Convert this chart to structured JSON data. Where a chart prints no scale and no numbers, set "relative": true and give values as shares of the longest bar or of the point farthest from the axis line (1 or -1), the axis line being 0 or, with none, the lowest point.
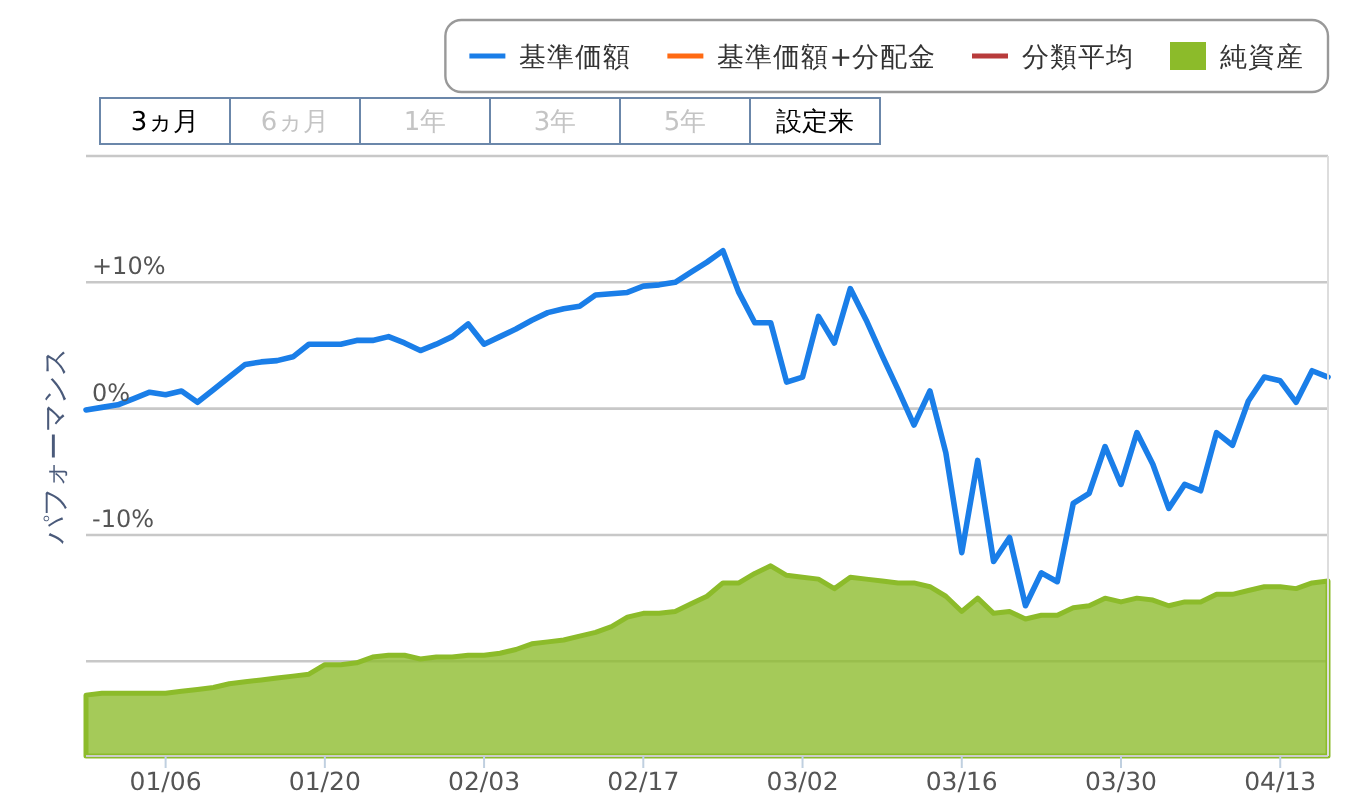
{
  "chart_data": [
    {
      "type": "line",
      "ylabel": "パフォーマンス",
      "categories": [
        null,
        null,
        null,
        null,
        null,
        "01/06",
        null,
        null,
        null,
        null,
        null,
        null,
        null,
        null,
        null,
        "01/20",
        null,
        null,
        null,
        null,
        null,
        null,
        null,
        null,
        null,
        "02/03",
        null,
        null,
        null,
        null,
        null,
        null,
        null,
        null,
        null,
        "02/17",
        null,
        null,
        null,
        null,
        null,
        null,
        null,
        null,
        null,
        "03/02",
        null,
        null,
        null,
        null,
        null,
        null,
        null,
        null,
        null,
        "03/16",
        null,
        null,
        null,
        null,
        null,
        null,
        null,
        null,
        null,
        "03/30",
        null,
        null,
        null,
        null,
        null,
        null,
        null,
        null,
        null,
        "04/13",
        null,
        null,
        null
      ],
      "series": [
        {
          "name": "基準価額",
          "color": "#1a7ee8",
          "values": [
            -0.1,
            0.1,
            0.3,
            0.8,
            1.3,
            1.1,
            1.4,
            0.5,
            1.5,
            2.5,
            3.5,
            3.7,
            3.8,
            4.1,
            5.1,
            5.1,
            5.1,
            5.4,
            5.4,
            5.7,
            5.2,
            4.6,
            5.1,
            5.7,
            6.7,
            5.1,
            5.7,
            6.3,
            7.0,
            7.6,
            7.9,
            8.1,
            9.0,
            9.1,
            9.2,
            9.7,
            9.8,
            10.0,
            10.8,
            11.6,
            12.5,
            9.2,
            6.8,
            6.8,
            2.1,
            2.5,
            7.3,
            5.2,
            9.5,
            7.0,
            4.2,
            1.5,
            -1.3,
            1.4,
            -3.5,
            -11.4,
            -4.1,
            -12.1,
            -10.2,
            -15.6,
            -13.0,
            -13.7,
            -7.5,
            -6.7,
            -3.0,
            -6.0,
            -1.9,
            -4.4,
            -7.9,
            -6.0,
            -6.5,
            -1.9,
            -2.9,
            0.6,
            2.5,
            2.2,
            0.5,
            3.0,
            2.5
          ]
        },
        {
          "name": "基準価額+分配金",
          "color": "#ff6a13",
          "values": [
            null,
            null,
            null,
            null,
            null,
            null,
            null,
            null,
            null,
            null,
            null,
            null,
            null,
            null,
            null,
            null,
            null,
            null,
            null,
            null,
            null,
            null,
            null,
            null,
            null,
            null,
            null,
            null,
            null,
            null,
            null,
            null,
            null,
            null,
            null,
            null,
            null,
            null,
            null,
            null,
            null,
            null,
            null,
            null,
            null,
            null,
            null,
            null,
            null,
            null,
            null,
            null,
            null,
            null,
            null,
            null,
            null,
            null,
            null,
            null,
            null,
            null,
            null,
            null,
            null,
            null,
            null,
            null,
            null,
            null,
            null,
            null,
            null,
            null,
            null,
            null,
            null,
            null,
            null
          ]
        },
        {
          "name": "分類平均",
          "color": "#b83b3b",
          "values": [
            null,
            null,
            null,
            null,
            null,
            null,
            null,
            null,
            null,
            null,
            null,
            null,
            null,
            null,
            null,
            null,
            null,
            null,
            null,
            null,
            null,
            null,
            null,
            null,
            null,
            null,
            null,
            null,
            null,
            null,
            null,
            null,
            null,
            null,
            null,
            null,
            null,
            null,
            null,
            null,
            null,
            null,
            null,
            null,
            null,
            null,
            null,
            null,
            null,
            null,
            null,
            null,
            null,
            null,
            null,
            null,
            null,
            null,
            null,
            null,
            null,
            null,
            null,
            null,
            null,
            null,
            null,
            null,
            null,
            null,
            null,
            null,
            null,
            null,
            null,
            null,
            null,
            null,
            null
          ]
        }
      ],
      "ylim": [
        -27.5,
        20
      ],
      "yticks": [
        {
          "value": 20,
          "label": null
        },
        {
          "value": 10,
          "label": "+10%"
        },
        {
          "value": 0,
          "label": "0%"
        },
        {
          "value": -10,
          "label": "-10%"
        },
        {
          "value": -20,
          "label": null
        }
      ],
      "grid": "y",
      "legend": "top right",
      "annotations": [
        "3ヵ月",
        "6ヵ月",
        "1年",
        "3年",
        "5年",
        "設定来"
      ]
    },
    {
      "type": "area",
      "relative": true,
      "tick_labels": false,
      "legend": "top right",
      "categories": [
        null,
        null,
        null,
        null,
        null,
        null,
        null,
        null,
        null,
        null,
        null,
        null,
        null,
        null,
        null,
        null,
        null,
        null,
        null,
        null,
        null,
        null,
        null,
        null,
        null,
        null,
        null,
        null,
        null,
        null,
        null,
        null,
        null,
        null,
        null,
        null,
        null,
        null,
        null,
        null,
        null,
        null,
        null,
        null,
        null,
        null,
        null,
        null,
        null,
        null,
        null,
        null,
        null,
        null,
        null,
        null,
        null,
        null,
        null,
        null,
        null,
        null,
        null,
        null,
        null,
        null,
        null,
        null,
        null,
        null,
        null,
        null,
        null,
        null,
        null,
        null,
        null,
        null,
        null
      ],
      "series": [
        {
          "name": "純資産",
          "color": "#8cbb2a",
          "values": [
            0.32,
            0.33,
            0.33,
            0.33,
            0.33,
            0.33,
            0.34,
            0.35,
            0.36,
            0.38,
            0.39,
            0.4,
            0.41,
            0.42,
            0.43,
            0.48,
            0.48,
            0.49,
            0.52,
            0.53,
            0.53,
            0.51,
            0.52,
            0.52,
            0.53,
            0.53,
            0.54,
            0.56,
            0.59,
            0.6,
            0.61,
            0.63,
            0.65,
            0.68,
            0.73,
            0.75,
            0.75,
            0.76,
            0.8,
            0.84,
            0.91,
            0.91,
            0.96,
            1,
            0.95,
            0.94,
            0.93,
            0.88,
            0.94,
            0.93,
            0.92,
            0.91,
            0.91,
            0.89,
            0.84,
            0.76,
            0.83,
            0.75,
            0.76,
            0.72,
            0.74,
            0.74,
            0.78,
            0.79,
            0.83,
            0.81,
            0.83,
            0.82,
            0.79,
            0.81,
            0.81,
            0.85,
            0.85,
            0.87,
            0.89,
            0.89,
            0.88,
            0.91,
            0.92
          ]
        }
      ]
    }
  ]
}
